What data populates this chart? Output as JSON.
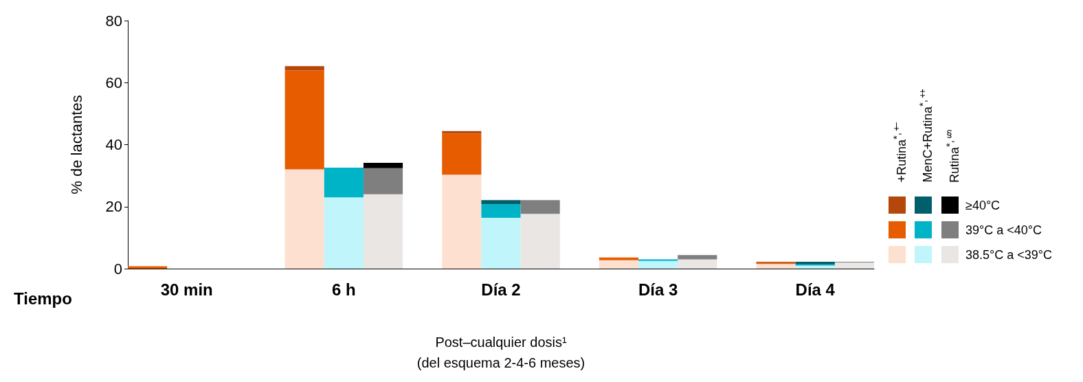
{
  "chart_data": {
    "type": "bar",
    "stacked": true,
    "ylabel": "% de lactantes",
    "xlabel": "Post–cualquier dosis¹\n(del esquema 2-4-6 meses)",
    "categories": [
      null,
      "30 min",
      null,
      null,
      null,
      "6 h",
      null,
      null,
      null,
      "Día 2",
      null,
      null,
      null,
      "Día 3",
      null,
      null,
      null,
      "Día 4",
      null
    ],
    "ylim": [
      0,
      80
    ],
    "yticks": [
      0,
      20,
      40,
      60,
      80
    ],
    "legend": "right",
    "annotations": [
      "Tiempo",
      "+Rutina$^{*,†}$",
      "MenC+Rutina$^{*,‡}$",
      "Rutina$^{*,§}$"
    ],
    "series": [
      {
        "name": "38.5°C a <39°C",
        "values": [
          0,
          0,
          0,
          null,
          32,
          23,
          24,
          null,
          30.3,
          16.4,
          17.7,
          null,
          2.7,
          2.5,
          3.0,
          null,
          1.5,
          1.0,
          2.0
        ],
        "colors": [
          "#fde0d0",
          "#bff5fb",
          "#eae6e4",
          null,
          "#fde0d0",
          "#bff5fb",
          "#eae6e4",
          null,
          "#fde0d0",
          "#bff5fb",
          "#eae6e4",
          null,
          "#fde0d0",
          "#bff5fb",
          "#eae6e4",
          null,
          "#fde0d0",
          "#bff5fb",
          "#eae6e4"
        ]
      },
      {
        "name": "39°C a <40°C",
        "values": [
          0.8,
          0,
          0,
          null,
          32,
          9.6,
          8.4,
          null,
          13.3,
          4.4,
          4.4,
          null,
          0.9,
          0.5,
          1.4,
          null,
          0.4,
          0.4,
          0.2
        ],
        "colors": [
          "#e85c00",
          "#00b4c8",
          "#7f7f7f",
          null,
          "#e85c00",
          "#00b4c8",
          "#7f7f7f",
          null,
          "#e85c00",
          "#00b4c8",
          "#7f7f7f",
          null,
          "#e85c00",
          "#00b4c8",
          "#7f7f7f",
          null,
          "#e85c00",
          "#00b4c8",
          "#7f7f7f"
        ]
      },
      {
        "name": "≥40°C",
        "values": [
          0,
          0,
          0,
          null,
          1.3,
          0,
          1.7,
          null,
          0.8,
          1.3,
          0,
          null,
          0,
          0,
          0,
          null,
          0.3,
          0.8,
          0
        ],
        "colors": [
          "#b5470d",
          "#005f6b",
          "#000000",
          null,
          "#b5470d",
          "#005f6b",
          "#000000",
          null,
          "#b5470d",
          "#005f6b",
          "#000000",
          null,
          "#b5470d",
          "#005f6b",
          "#000000",
          null,
          "#b5470d",
          "#005f6b",
          "#000000"
        ]
      }
    ]
  }
}
